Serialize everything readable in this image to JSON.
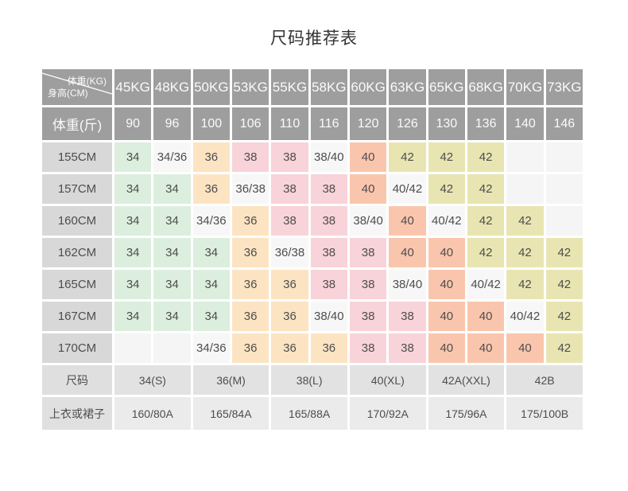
{
  "title": "尺码推荐表",
  "colors": {
    "green": "#dceedd",
    "peach": "#fce4c3",
    "pink": "#f8d3d9",
    "salmon": "#f9c6ad",
    "yellow": "#e8e5b2",
    "plain": "#f7f7f7",
    "empty": "#f5f5f5",
    "header_bg": "#9e9e9e",
    "row_label_bg": "#d8d8d8",
    "size_row_bg": "#e2e2e2",
    "bottom_row_bg": "#ebebeb"
  },
  "header": {
    "corner_top": "体重(KG)",
    "corner_bottom": "身高(CM)",
    "weights_kg": [
      "45KG",
      "48KG",
      "50KG",
      "53KG",
      "55KG",
      "58KG",
      "60KG",
      "63KG",
      "65KG",
      "68KG",
      "70KG",
      "73KG"
    ],
    "jin_label": "体重(斤)",
    "weights_jin": [
      "90",
      "96",
      "100",
      "106",
      "110",
      "116",
      "120",
      "126",
      "130",
      "136",
      "140",
      "146"
    ]
  },
  "body_rows": [
    {
      "label": "155CM",
      "cells": [
        {
          "v": "34",
          "c": "green"
        },
        {
          "v": "34/36",
          "c": "plain"
        },
        {
          "v": "36",
          "c": "peach"
        },
        {
          "v": "38",
          "c": "pink"
        },
        {
          "v": "38",
          "c": "pink"
        },
        {
          "v": "38/40",
          "c": "plain"
        },
        {
          "v": "40",
          "c": "salmon"
        },
        {
          "v": "42",
          "c": "yellow"
        },
        {
          "v": "42",
          "c": "yellow"
        },
        {
          "v": "42",
          "c": "yellow"
        },
        {
          "v": "",
          "c": "empty"
        },
        {
          "v": "",
          "c": "empty"
        }
      ]
    },
    {
      "label": "157CM",
      "cells": [
        {
          "v": "34",
          "c": "green"
        },
        {
          "v": "34",
          "c": "green"
        },
        {
          "v": "36",
          "c": "peach"
        },
        {
          "v": "36/38",
          "c": "plain"
        },
        {
          "v": "38",
          "c": "pink"
        },
        {
          "v": "38",
          "c": "pink"
        },
        {
          "v": "40",
          "c": "salmon"
        },
        {
          "v": "40/42",
          "c": "plain"
        },
        {
          "v": "42",
          "c": "yellow"
        },
        {
          "v": "42",
          "c": "yellow"
        },
        {
          "v": "",
          "c": "empty"
        },
        {
          "v": "",
          "c": "empty"
        }
      ]
    },
    {
      "label": "160CM",
      "cells": [
        {
          "v": "34",
          "c": "green"
        },
        {
          "v": "34",
          "c": "green"
        },
        {
          "v": "34/36",
          "c": "plain"
        },
        {
          "v": "36",
          "c": "peach"
        },
        {
          "v": "38",
          "c": "pink"
        },
        {
          "v": "38",
          "c": "pink"
        },
        {
          "v": "38/40",
          "c": "plain"
        },
        {
          "v": "40",
          "c": "salmon"
        },
        {
          "v": "40/42",
          "c": "plain"
        },
        {
          "v": "42",
          "c": "yellow"
        },
        {
          "v": "42",
          "c": "yellow"
        },
        {
          "v": "",
          "c": "empty"
        }
      ]
    },
    {
      "label": "162CM",
      "cells": [
        {
          "v": "34",
          "c": "green"
        },
        {
          "v": "34",
          "c": "green"
        },
        {
          "v": "34",
          "c": "green"
        },
        {
          "v": "36",
          "c": "peach"
        },
        {
          "v": "36/38",
          "c": "plain"
        },
        {
          "v": "38",
          "c": "pink"
        },
        {
          "v": "38",
          "c": "pink"
        },
        {
          "v": "40",
          "c": "salmon"
        },
        {
          "v": "40",
          "c": "salmon"
        },
        {
          "v": "42",
          "c": "yellow"
        },
        {
          "v": "42",
          "c": "yellow"
        },
        {
          "v": "42",
          "c": "yellow"
        }
      ]
    },
    {
      "label": "165CM",
      "cells": [
        {
          "v": "34",
          "c": "green"
        },
        {
          "v": "34",
          "c": "green"
        },
        {
          "v": "34",
          "c": "green"
        },
        {
          "v": "36",
          "c": "peach"
        },
        {
          "v": "36",
          "c": "peach"
        },
        {
          "v": "38",
          "c": "pink"
        },
        {
          "v": "38",
          "c": "pink"
        },
        {
          "v": "38/40",
          "c": "plain"
        },
        {
          "v": "40",
          "c": "salmon"
        },
        {
          "v": "40/42",
          "c": "plain"
        },
        {
          "v": "42",
          "c": "yellow"
        },
        {
          "v": "42",
          "c": "yellow"
        }
      ]
    },
    {
      "label": "167CM",
      "cells": [
        {
          "v": "34",
          "c": "green"
        },
        {
          "v": "34",
          "c": "green"
        },
        {
          "v": "34",
          "c": "green"
        },
        {
          "v": "36",
          "c": "peach"
        },
        {
          "v": "36",
          "c": "peach"
        },
        {
          "v": "38/40",
          "c": "plain"
        },
        {
          "v": "38",
          "c": "pink"
        },
        {
          "v": "38",
          "c": "pink"
        },
        {
          "v": "40",
          "c": "salmon"
        },
        {
          "v": "40",
          "c": "salmon"
        },
        {
          "v": "40/42",
          "c": "plain"
        },
        {
          "v": "42",
          "c": "yellow"
        }
      ]
    },
    {
      "label": "170CM",
      "cells": [
        {
          "v": "",
          "c": "empty"
        },
        {
          "v": "",
          "c": "empty"
        },
        {
          "v": "34/36",
          "c": "plain"
        },
        {
          "v": "36",
          "c": "peach"
        },
        {
          "v": "36",
          "c": "peach"
        },
        {
          "v": "36",
          "c": "peach"
        },
        {
          "v": "38",
          "c": "pink"
        },
        {
          "v": "38",
          "c": "pink"
        },
        {
          "v": "40",
          "c": "salmon"
        },
        {
          "v": "40",
          "c": "salmon"
        },
        {
          "v": "40",
          "c": "salmon"
        },
        {
          "v": "42",
          "c": "yellow"
        }
      ]
    }
  ],
  "size_row": {
    "label": "尺码",
    "cells": [
      "34(S)",
      "36(M)",
      "38(L)",
      "40(XL)",
      "42A(XXL)",
      "42B"
    ]
  },
  "bottom_row": {
    "label": "上衣或裙子",
    "cells": [
      "160/80A",
      "165/84A",
      "165/88A",
      "170/92A",
      "175/96A",
      "175/100B"
    ]
  }
}
